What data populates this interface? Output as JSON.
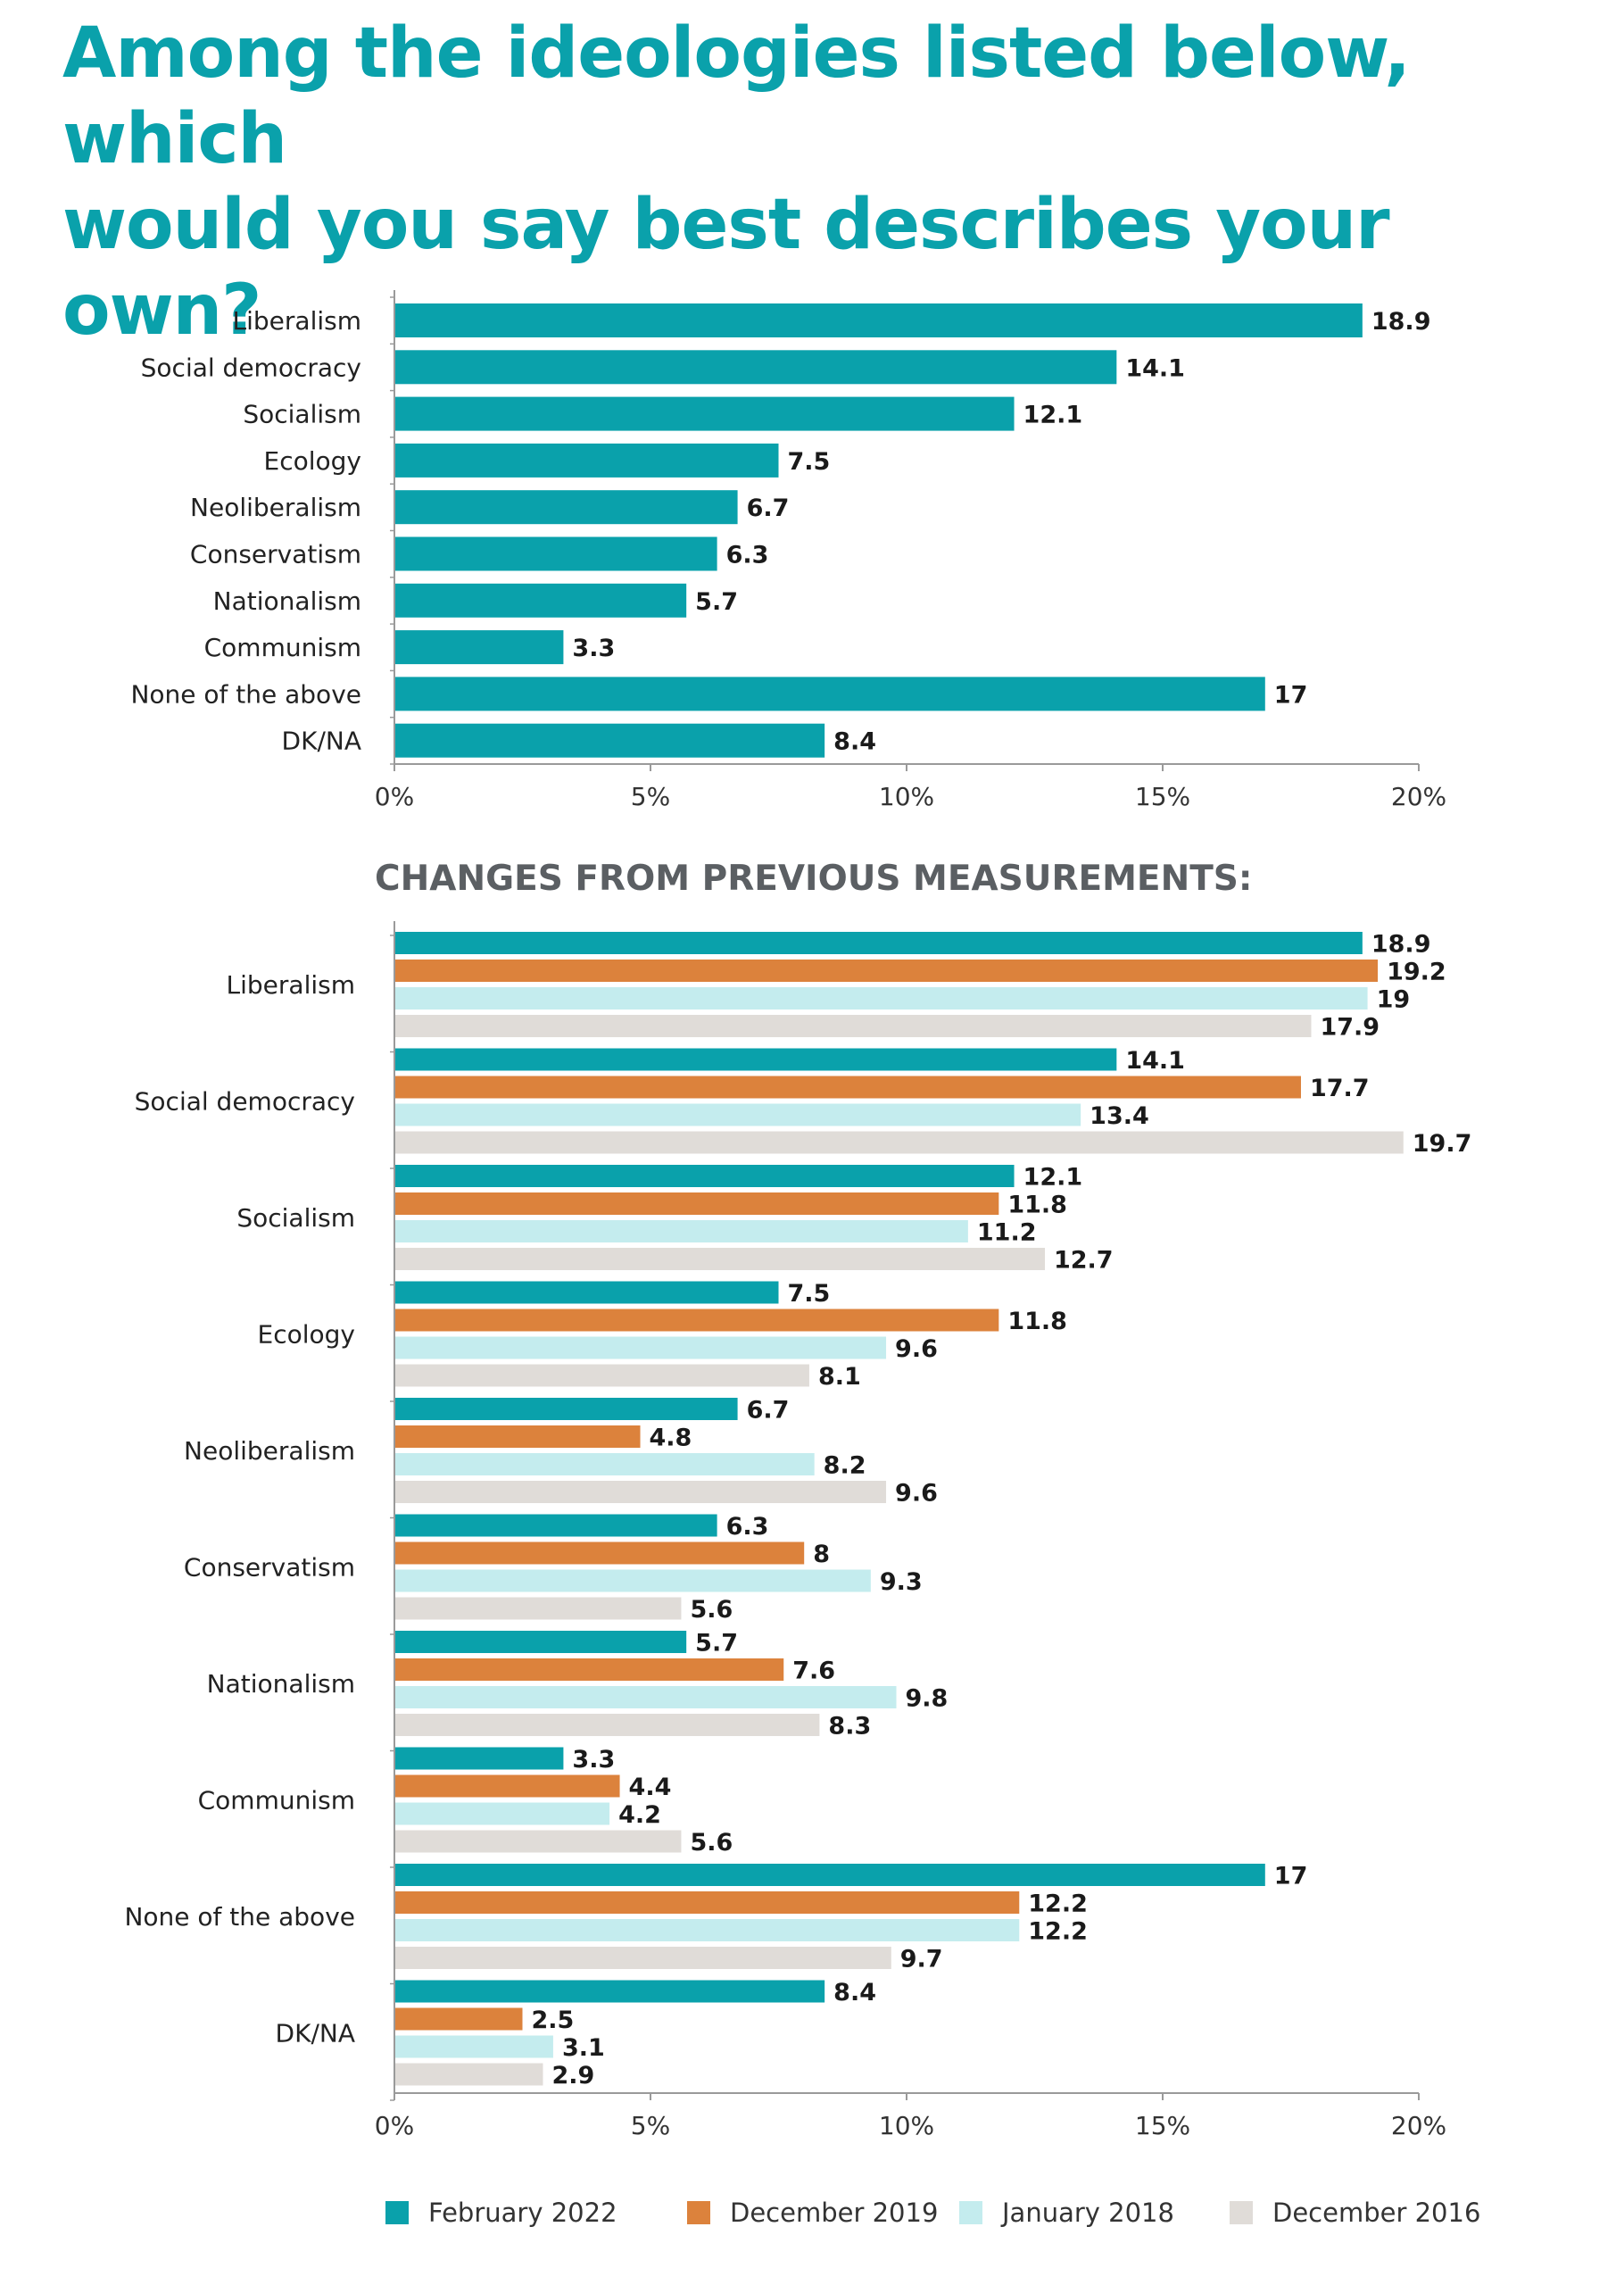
{
  "title_lines": [
    "Among the ideologies listed below, which",
    "would you say best describes your own?"
  ],
  "colors": {
    "title": "#0aa1ab",
    "February 2022": "#0aa1ab",
    "December 2019": "#dc823c",
    "January 2018": "#c4ecee",
    "December 2016": "#e0dcd8",
    "axis": "#9a9a9a",
    "subtitle": "#5b5f63"
  },
  "chart_data": [
    {
      "type": "bar",
      "orientation": "horizontal",
      "title": "",
      "categories": [
        "Liberalism",
        "Social democracy",
        "Socialism",
        "Ecology",
        "Neoliberalism",
        "Conservatism",
        "Nationalism",
        "Communism",
        "None of the above",
        "DK/NA"
      ],
      "series": [
        {
          "values": [
            18.9,
            14.1,
            12.1,
            7.5,
            6.7,
            6.3,
            5.7,
            3.3,
            17,
            8.4
          ],
          "labels": [
            "18.9",
            "14.1",
            "12.1",
            "7.5",
            "6.7",
            "6.3",
            "5.7",
            "3.3",
            "17",
            "8.4"
          ]
        }
      ],
      "xlim": [
        0,
        20
      ],
      "xticks": [
        "0%",
        "5%",
        "10%",
        "15%",
        "20%"
      ],
      "grid": false
    },
    {
      "type": "bar",
      "orientation": "horizontal",
      "title": "CHANGES FROM PREVIOUS MEASUREMENTS:",
      "categories": [
        "Liberalism",
        "Social democracy",
        "Socialism",
        "Ecology",
        "Neoliberalism",
        "Conservatism",
        "Nationalism",
        "Communism",
        "None of the above",
        "DK/NA"
      ],
      "series": [
        {
          "name": "February 2022",
          "values": [
            18.9,
            14.1,
            12.1,
            7.5,
            6.7,
            6.3,
            5.7,
            3.3,
            17,
            8.4
          ],
          "labels": [
            "18.9",
            "14.1",
            "12.1",
            "7.5",
            "6.7",
            "6.3",
            "5.7",
            "3.3",
            "17",
            "8.4"
          ]
        },
        {
          "name": "December 2019",
          "values": [
            19.2,
            17.7,
            11.8,
            11.8,
            4.8,
            8,
            7.6,
            4.4,
            12.2,
            2.5
          ],
          "labels": [
            "19.2",
            "17.7",
            "11.8",
            "11.8",
            "4.8",
            "8",
            "7.6",
            "4.4",
            "12.2",
            "2.5"
          ]
        },
        {
          "name": "January 2018",
          "values": [
            19,
            13.4,
            11.2,
            9.6,
            8.2,
            9.3,
            9.8,
            4.2,
            12.2,
            3.1
          ],
          "labels": [
            "19",
            "13.4",
            "11.2",
            "9.6",
            "8.2",
            "9.3",
            "9.8",
            "4.2",
            "12.2",
            "3.1"
          ]
        },
        {
          "name": "December 2016",
          "values": [
            17.9,
            19.7,
            12.7,
            8.1,
            9.6,
            5.6,
            8.3,
            5.6,
            9.7,
            2.9
          ],
          "labels": [
            "17.9",
            "19.7",
            "12.7",
            "8.1",
            "9.6",
            "5.6",
            "8.3",
            "5.6",
            "9.7",
            "2.9"
          ]
        }
      ],
      "xlim": [
        0,
        20
      ],
      "xticks": [
        "0%",
        "5%",
        "10%",
        "15%",
        "20%"
      ],
      "grid": false,
      "legend_position": "bottom"
    }
  ]
}
